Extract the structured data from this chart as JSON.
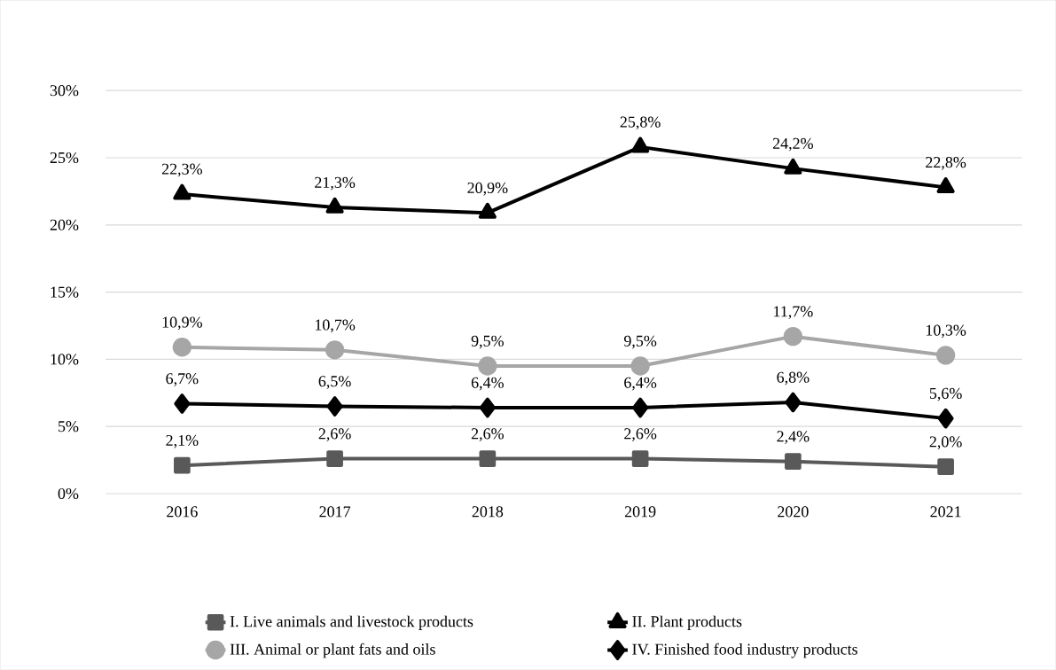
{
  "chart_data": {
    "type": "line",
    "categories": [
      "2016",
      "2017",
      "2018",
      "2019",
      "2020",
      "2021"
    ],
    "ylim": [
      0,
      30
    ],
    "yticks": [
      {
        "value": 0,
        "label": "0%"
      },
      {
        "value": 5,
        "label": "5%"
      },
      {
        "value": 10,
        "label": "10%"
      },
      {
        "value": 15,
        "label": "15%"
      },
      {
        "value": 20,
        "label": "20%"
      },
      {
        "value": 25,
        "label": "25%"
      },
      {
        "value": 30,
        "label": "30%"
      }
    ],
    "grid": "y",
    "legend": "bottom",
    "line_style": "solid",
    "series": [
      {
        "name": "I. Live animals and livestock products",
        "color": "#595959",
        "marker": "square",
        "values": [
          2.1,
          2.6,
          2.6,
          2.6,
          2.4,
          2.0
        ],
        "value_labels": [
          "2,1%",
          "2,6%",
          "2,6%",
          "2,6%",
          "2,4%",
          "2,0%"
        ]
      },
      {
        "name": "II. Plant products",
        "color": "#000000",
        "marker": "triangle",
        "values": [
          22.3,
          21.3,
          20.9,
          25.8,
          24.2,
          22.8
        ],
        "value_labels": [
          "22,3%",
          "21,3%",
          "20,9%",
          "25,8%",
          "24,2%",
          "22,8%"
        ]
      },
      {
        "name": "III. Animal or plant fats and oils",
        "color": "#a6a6a6",
        "marker": "circle",
        "values": [
          10.9,
          10.7,
          9.5,
          9.5,
          11.7,
          10.3
        ],
        "value_labels": [
          "10,9%",
          "10,7%",
          "9,5%",
          "9,5%",
          "11,7%",
          "10,3%"
        ]
      },
      {
        "name": "IV. Finished food industry products",
        "color": "#000000",
        "marker": "diamond",
        "values": [
          6.7,
          6.5,
          6.4,
          6.4,
          6.8,
          5.6
        ],
        "value_labels": [
          "6,7%",
          "6,5%",
          "6,4%",
          "6,4%",
          "6,8%",
          "5,6%"
        ]
      }
    ]
  }
}
